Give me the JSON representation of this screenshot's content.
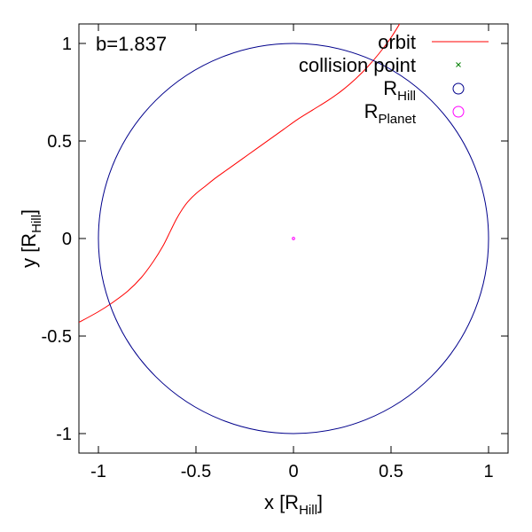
{
  "chart_data": {
    "type": "line",
    "annotation": "b=1.837",
    "xlabel": {
      "main": "x [R",
      "sub": "Hill",
      "close": "]"
    },
    "ylabel": {
      "main": "y [R",
      "sub": "Hill",
      "close": "]"
    },
    "xlim": [
      -1.1,
      1.1
    ],
    "ylim": [
      -1.1,
      1.1
    ],
    "grid": false,
    "legend_position": "top-right",
    "x_ticks": [
      -1,
      -0.5,
      0,
      0.5,
      1
    ],
    "x_tick_labels": [
      "-1",
      "-0.5",
      "0",
      "0.5",
      "1"
    ],
    "y_ticks": [
      -1,
      -0.5,
      0,
      0.5,
      1
    ],
    "y_tick_labels": [
      "-1",
      "-0.5",
      "0",
      "0.5",
      "1"
    ],
    "series": [
      {
        "name": "orbit",
        "color": "#ff0000",
        "kind": "line",
        "x": [
          -1.1,
          -1.0,
          -0.93,
          -0.85,
          -0.78,
          -0.72,
          -0.67,
          -0.63,
          -0.6,
          -0.57,
          -0.54,
          -0.5,
          -0.45,
          -0.4,
          -0.33,
          -0.26,
          -0.19,
          -0.12,
          -0.05,
          0.02,
          0.1,
          0.18,
          0.25,
          0.32,
          0.38,
          0.44,
          0.5,
          0.55
        ],
        "y": [
          -0.43,
          -0.375,
          -0.33,
          -0.27,
          -0.2,
          -0.12,
          -0.04,
          0.04,
          0.1,
          0.15,
          0.19,
          0.23,
          0.27,
          0.31,
          0.36,
          0.41,
          0.46,
          0.51,
          0.56,
          0.61,
          0.66,
          0.71,
          0.76,
          0.82,
          0.88,
          0.95,
          1.03,
          1.11
        ]
      },
      {
        "name": "collision point",
        "name_main": "collision point",
        "name_sub": "",
        "color": "#008000",
        "kind": "point-x",
        "x": [],
        "y": []
      },
      {
        "name": "RHill",
        "name_main": "R",
        "name_sub": "Hill",
        "color": "#00008b",
        "kind": "circle",
        "cx": 0,
        "cy": 0,
        "r": 1.0
      },
      {
        "name": "RPlanet",
        "name_main": "R",
        "name_sub": "Planet",
        "color": "#ff00ff",
        "kind": "circle",
        "cx": 0,
        "cy": 0,
        "r": 0.006
      }
    ]
  }
}
